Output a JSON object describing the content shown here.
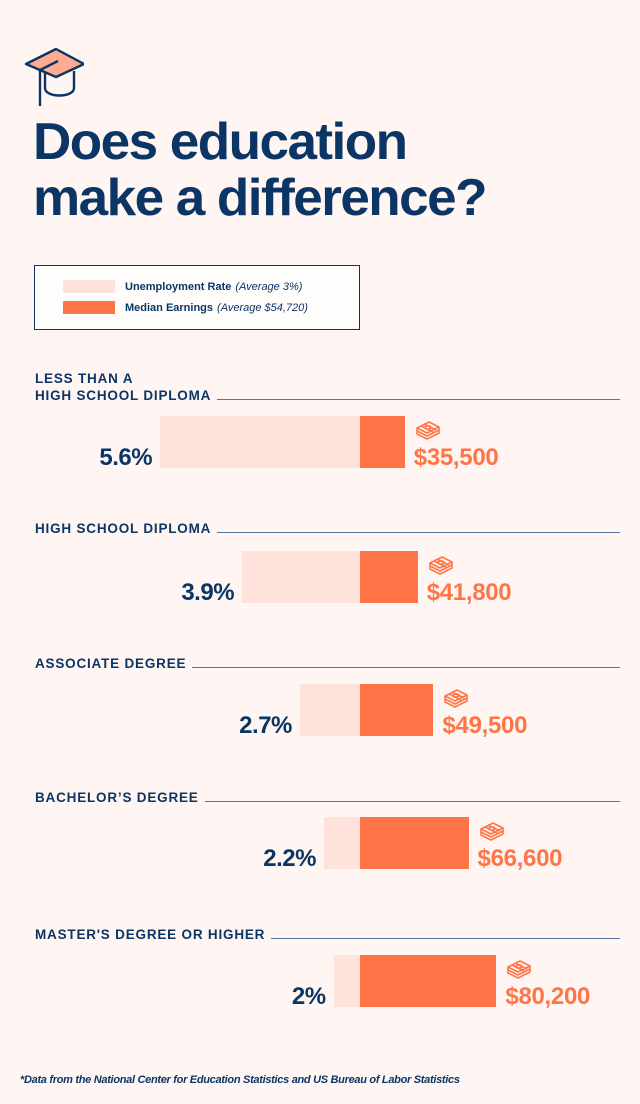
{
  "header": {
    "icon": "graduation-cap-icon",
    "title_lines": [
      "Does education",
      "make a difference?"
    ]
  },
  "colors": {
    "navy": "#0b3565",
    "unemployment": "#ffe3db",
    "earnings": "#ff7548",
    "background": "#fff6f4"
  },
  "legend": {
    "items": [
      {
        "label": "Unemployment Rate",
        "note": "(Average 3%)",
        "color": "#ffe3db"
      },
      {
        "label": "Median Earnings",
        "note": "(Average $54,720)",
        "color": "#ff7548"
      }
    ]
  },
  "chart_data": {
    "type": "bar",
    "title": "Does education make a difference?",
    "categories": [
      "Less than a high school diploma",
      "High school diploma",
      "Associate degree",
      "Bachelor's degree",
      "Master's degree or higher"
    ],
    "category_labels": [
      [
        "LESS THAN A",
        "HIGH SCHOOL DIPLOMA"
      ],
      [
        "HIGH SCHOOL DIPLOMA"
      ],
      [
        "ASSOCIATE DEGREE"
      ],
      [
        "BACHELOR’S DEGREE"
      ],
      [
        "MASTER'S DEGREE OR HIGHER"
      ]
    ],
    "series": [
      {
        "name": "Unemployment Rate",
        "unit": "%",
        "average": 3,
        "values": [
          5.6,
          3.9,
          2.7,
          2.2,
          2
        ],
        "labels": [
          "5.6%",
          "3.9%",
          "2.7%",
          "2.2%",
          "2%"
        ]
      },
      {
        "name": "Median Earnings",
        "unit": "USD",
        "average": 54720,
        "values": [
          35500,
          41800,
          49500,
          66600,
          80200
        ],
        "labels": [
          "$35,500",
          "$41,800",
          "$49,500",
          "$66,600",
          "$80,200"
        ]
      }
    ],
    "orientation": "horizontal-diverging",
    "legend_position": "top-left",
    "grid": false
  },
  "footnote": "*Data from the National Center for Education Statistics and US Bureau of Labor Statistics"
}
